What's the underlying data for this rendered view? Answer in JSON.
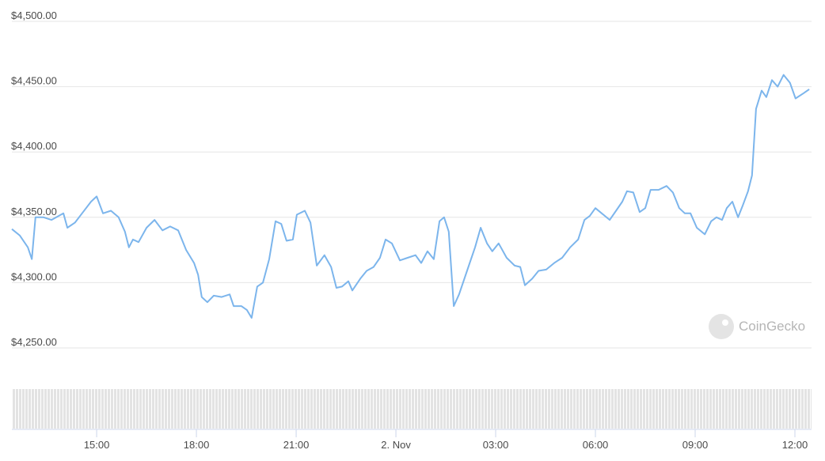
{
  "chart_data": {
    "type": "line",
    "watermark": "CoinGecko",
    "x": [
      12.45,
      12.69,
      12.93,
      13.05,
      13.16,
      13.4,
      13.64,
      14.0,
      14.12,
      14.35,
      14.59,
      14.83,
      15.0,
      15.19,
      15.43,
      15.66,
      15.85,
      15.97,
      16.09,
      16.26,
      16.5,
      16.74,
      16.98,
      17.21,
      17.45,
      17.69,
      17.93,
      18.05,
      18.16,
      18.33,
      18.52,
      18.76,
      19.0,
      19.12,
      19.35,
      19.52,
      19.66,
      19.83,
      20.0,
      20.19,
      20.38,
      20.55,
      20.71,
      20.9,
      21.02,
      21.26,
      21.43,
      21.62,
      21.85,
      22.05,
      22.21,
      22.38,
      22.57,
      22.69,
      22.93,
      23.12,
      23.33,
      23.52,
      23.69,
      23.88,
      24.12,
      24.35,
      24.59,
      24.76,
      24.95,
      25.14,
      25.31,
      25.45,
      25.59,
      25.74,
      25.9,
      26.14,
      26.38,
      26.55,
      26.74,
      26.9,
      27.09,
      27.33,
      27.57,
      27.74,
      27.88,
      28.1,
      28.29,
      28.52,
      28.76,
      29.0,
      29.24,
      29.48,
      29.67,
      29.83,
      30.0,
      30.19,
      30.43,
      30.62,
      30.81,
      30.95,
      31.14,
      31.33,
      31.5,
      31.66,
      31.9,
      32.14,
      32.33,
      32.52,
      32.69,
      32.86,
      33.05,
      33.29,
      33.48,
      33.64,
      33.81,
      33.95,
      34.12,
      34.29,
      34.43,
      34.59,
      34.71,
      34.83,
      35.0,
      35.14,
      35.31,
      35.48,
      35.66,
      35.85,
      36.02,
      36.26,
      36.43
    ],
    "series": [
      {
        "color": "#7cb5ec",
        "values": [
          4341,
          4336,
          4327,
          4318,
          4350,
          4350,
          4348,
          4353,
          4342,
          4346,
          4354,
          4362,
          4366,
          4353,
          4355,
          4350,
          4339,
          4327,
          4333,
          4331,
          4342,
          4348,
          4340,
          4343,
          4340,
          4325,
          4315,
          4306,
          4289,
          4285,
          4290,
          4289,
          4291,
          4282,
          4282,
          4279,
          4273,
          4297,
          4300,
          4318,
          4347,
          4345,
          4332,
          4333,
          4352,
          4355,
          4346,
          4313,
          4321,
          4312,
          4296,
          4297,
          4301,
          4294,
          4303,
          4309,
          4312,
          4319,
          4333,
          4330,
          4317,
          4319,
          4321,
          4315,
          4324,
          4318,
          4347,
          4350,
          4339,
          4282,
          4291,
          4309,
          4327,
          4342,
          4330,
          4324,
          4330,
          4319,
          4313,
          4312,
          4298,
          4303,
          4309,
          4310,
          4315,
          4319,
          4327,
          4333,
          4348,
          4351,
          4357,
          4353,
          4348,
          4355,
          4362,
          4370,
          4369,
          4354,
          4357,
          4371,
          4371,
          4374,
          4369,
          4357,
          4353,
          4353,
          4342,
          4337,
          4347,
          4350,
          4348,
          4357,
          4362,
          4350,
          4359,
          4370,
          4382,
          4433,
          4447,
          4442,
          4455,
          4450,
          4459,
          4453,
          4441,
          4445,
          4448
        ]
      }
    ],
    "xlim": [
      12.45,
      36.5
    ],
    "xticks": [
      {
        "value": 15,
        "label": "15:00"
      },
      {
        "value": 18,
        "label": "18:00"
      },
      {
        "value": 21,
        "label": "21:00"
      },
      {
        "value": 24,
        "label": "2. Nov"
      },
      {
        "value": 27,
        "label": "03:00"
      },
      {
        "value": 30,
        "label": "06:00"
      },
      {
        "value": 33,
        "label": "09:00"
      },
      {
        "value": 36,
        "label": "12:00"
      }
    ],
    "ylim": [
      4250,
      4500
    ],
    "yticks": [
      {
        "value": 4250,
        "label": "$4,250.00"
      },
      {
        "value": 4300,
        "label": "$4,300.00"
      },
      {
        "value": 4350,
        "label": "$4,350.00"
      },
      {
        "value": 4400,
        "label": "$4,400.00"
      },
      {
        "value": 4450,
        "label": "$4,450.00"
      },
      {
        "value": 4500,
        "label": "$4,500.00"
      }
    ],
    "grid": true
  }
}
